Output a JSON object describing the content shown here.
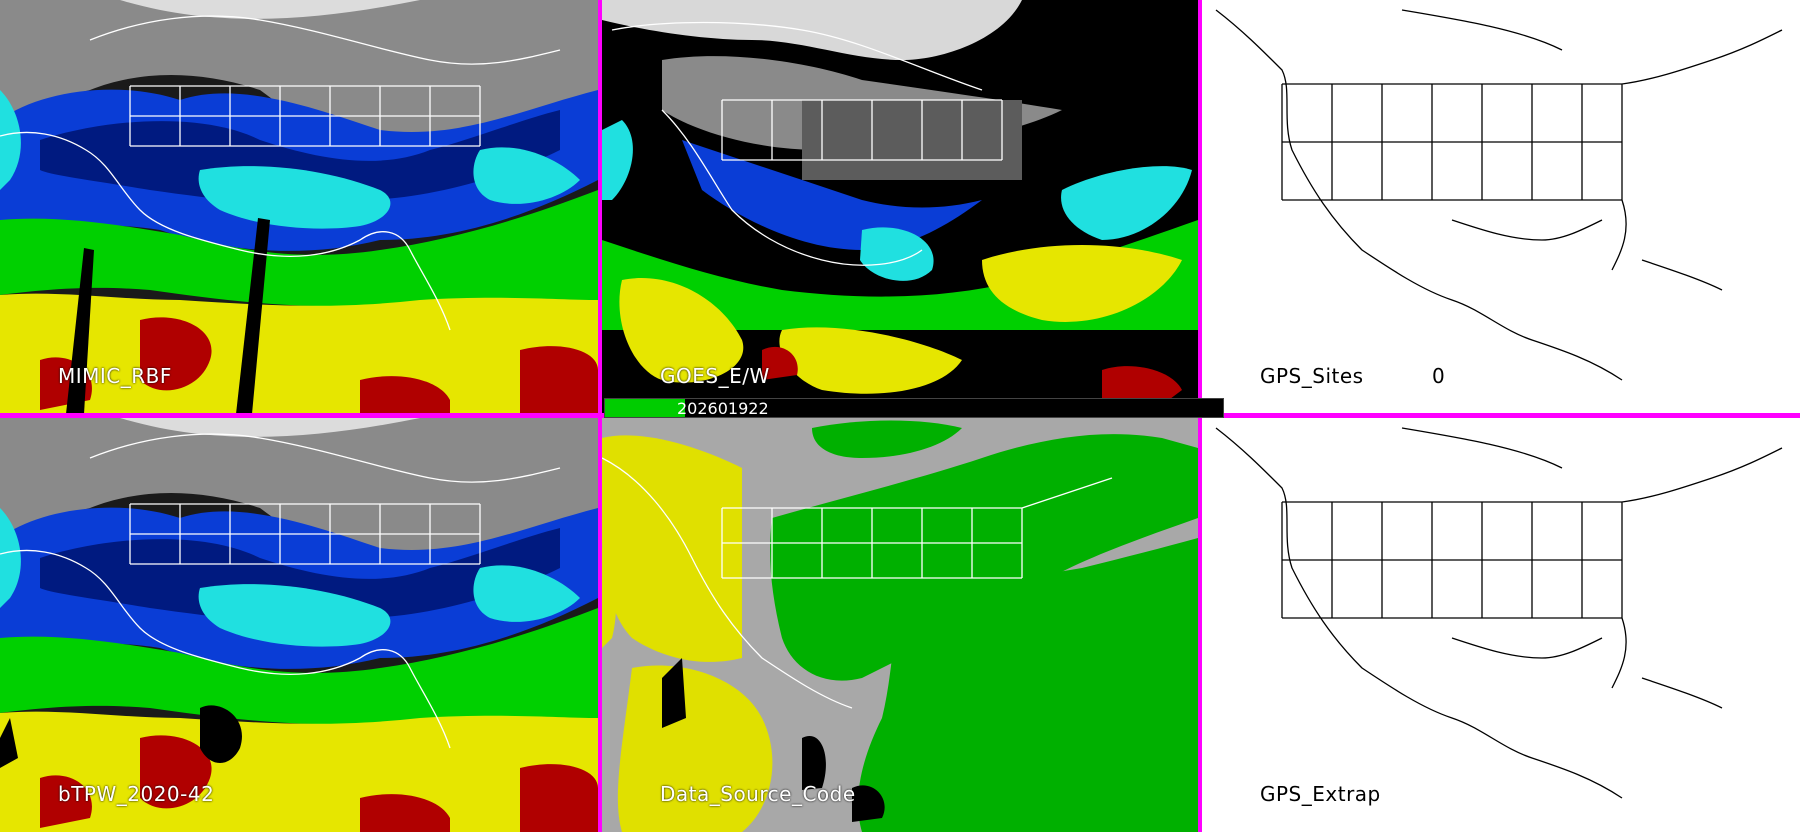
{
  "panels": {
    "top_left": {
      "label": "MIMIC_RBF"
    },
    "top_mid": {
      "label": "GOES_E/W"
    },
    "top_right": {
      "label": "GPS_Sites",
      "count": "0"
    },
    "bot_left": {
      "label": "bTPW_2020-42"
    },
    "bot_mid": {
      "label": "Data_Source_Code"
    },
    "bot_right": {
      "label": "GPS_Extrap"
    }
  },
  "timebar": {
    "timestamp": "202601922",
    "progress": 0.13
  },
  "colors": {
    "divider": "#ff00ff",
    "tpw_scale": [
      "#9a9a9a",
      "#ffffff",
      "#001a80",
      "#0a3dd6",
      "#20e0e0",
      "#00d000",
      "#e6e600",
      "#b00000",
      "#000000"
    ],
    "source_codes": [
      "#a8a8a8",
      "#e0e000",
      "#00b000",
      "#000000"
    ]
  }
}
